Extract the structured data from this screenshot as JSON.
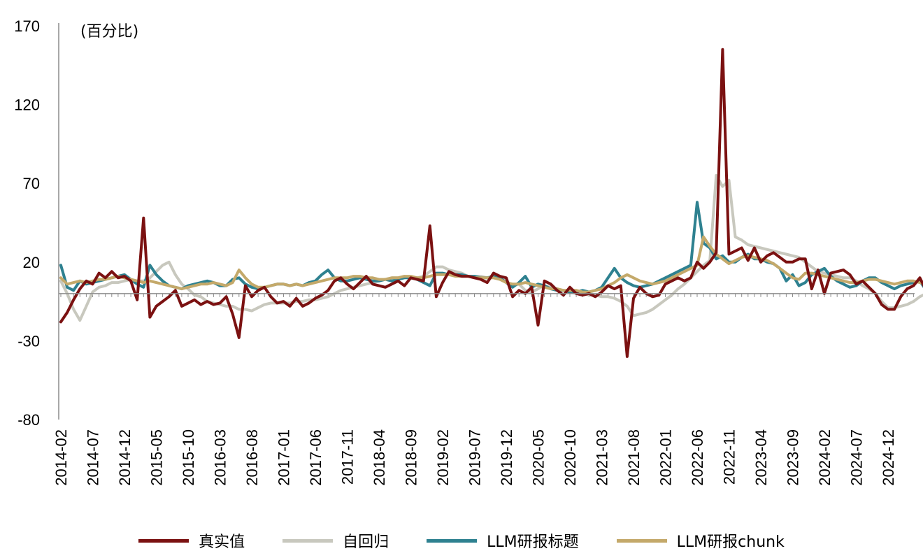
{
  "chart_data": {
    "type": "line",
    "unit_label": "(百分比)",
    "ylim": [
      -80,
      170
    ],
    "yticks": [
      -80,
      -30,
      20,
      70,
      120,
      170
    ],
    "xtick_labels": [
      "2014-02",
      "2014-07",
      "2014-12",
      "2015-05",
      "2015-10",
      "2016-03",
      "2016-08",
      "2017-01",
      "2017-06",
      "2017-11",
      "2018-04",
      "2018-09",
      "2019-02",
      "2019-07",
      "2019-12",
      "2020-05",
      "2020-10",
      "2021-03",
      "2021-08",
      "2022-01",
      "2022-06",
      "2022-11",
      "2023-04",
      "2023-09",
      "2024-02",
      "2024-07",
      "2024-12"
    ],
    "x_start": "2014-02",
    "grid": false,
    "legend_position": "bottom",
    "series": [
      {
        "name": "真实值",
        "color": "#7B1111",
        "values": [
          -18,
          -12,
          -4,
          3,
          8,
          6,
          13,
          10,
          14,
          10,
          11,
          8,
          -4,
          48,
          -15,
          -8,
          -5,
          -2,
          2,
          -8,
          -6,
          -4,
          -7,
          -5,
          -7,
          -6,
          -2,
          -13,
          -28,
          5,
          -2,
          2,
          4,
          -2,
          -6,
          -5,
          -8,
          -3,
          -8,
          -6,
          -3,
          -1,
          2,
          8,
          10,
          6,
          3,
          7,
          11,
          6,
          5,
          4,
          6,
          8,
          5,
          10,
          9,
          8,
          43,
          -2,
          7,
          14,
          12,
          11,
          11,
          10,
          9,
          7,
          13,
          11,
          10,
          -2,
          2,
          0,
          4,
          -20,
          8,
          6,
          2,
          -1,
          4,
          0,
          -1,
          0,
          -2,
          1,
          5,
          3,
          5,
          -40,
          -3,
          4,
          0,
          -2,
          -1,
          6,
          8,
          10,
          8,
          10,
          20,
          16,
          20,
          26,
          155,
          25,
          27,
          29,
          21,
          29,
          20,
          24,
          26,
          23,
          20,
          20,
          22,
          22,
          3,
          15,
          0,
          13,
          14,
          15,
          12,
          6,
          8,
          4,
          0,
          -7,
          -10,
          -10,
          -2,
          3,
          5,
          10,
          2,
          -7,
          -11,
          -13,
          -8,
          -2,
          3,
          6,
          -2,
          -5,
          5,
          6,
          -3,
          2,
          -8,
          3,
          -5,
          8,
          6,
          7,
          8,
          10,
          5,
          12,
          6,
          9,
          8,
          -3,
          11,
          8
        ]
      },
      {
        "name": "自回归",
        "color": "#C8C8BE",
        "values": [
          8,
          0,
          -10,
          -17,
          -8,
          1,
          4,
          5,
          7,
          7,
          8,
          9,
          8,
          8,
          10,
          14,
          18,
          20,
          12,
          6,
          3,
          -1,
          -2,
          -5,
          -6,
          -7,
          -8,
          -8,
          -10,
          -10,
          -11,
          -9,
          -7,
          -6,
          -6,
          -6,
          -6,
          -5,
          -5,
          -4,
          -4,
          -3,
          -2,
          0,
          2,
          3,
          4,
          5,
          6,
          7,
          8,
          9,
          10,
          10,
          11,
          10,
          10,
          11,
          14,
          17,
          17,
          15,
          14,
          13,
          11,
          11,
          11,
          10,
          10,
          9,
          8,
          5,
          6,
          2,
          1,
          3,
          5,
          4,
          3,
          2,
          1,
          0,
          0,
          -1,
          -1,
          -2,
          -2,
          -3,
          -5,
          -8,
          -14,
          -13,
          -12,
          -10,
          -7,
          -4,
          -1,
          3,
          6,
          10,
          14,
          18,
          21,
          75,
          68,
          72,
          36,
          34,
          31,
          30,
          29,
          28,
          27,
          26,
          25,
          24,
          23,
          20,
          17,
          14,
          13,
          12,
          11,
          10,
          10,
          8,
          5,
          3,
          0,
          -5,
          -9,
          -9,
          -8,
          -7,
          -5,
          -2,
          0,
          -2,
          -5,
          -7,
          -10,
          -13,
          -13,
          -12,
          -10,
          -8,
          -6,
          -4,
          -2,
          0,
          1,
          2,
          3,
          4,
          5,
          5,
          6,
          6,
          7,
          7,
          7,
          5,
          5,
          6,
          6
        ]
      },
      {
        "name": "LLM研报标题",
        "color": "#2E8190",
        "values": [
          18,
          4,
          2,
          8,
          6,
          7,
          8,
          9,
          10,
          11,
          12,
          9,
          6,
          4,
          18,
          12,
          8,
          5,
          4,
          3,
          5,
          6,
          7,
          8,
          7,
          5,
          5,
          9,
          10,
          6,
          4,
          3,
          4,
          5,
          6,
          6,
          5,
          6,
          5,
          7,
          8,
          12,
          15,
          10,
          8,
          8,
          9,
          10,
          9,
          8,
          8,
          9,
          8,
          9,
          10,
          10,
          9,
          7,
          5,
          13,
          13,
          12,
          12,
          12,
          11,
          11,
          10,
          10,
          11,
          10,
          7,
          4,
          7,
          11,
          4,
          6,
          5,
          3,
          2,
          2,
          1,
          1,
          2,
          1,
          2,
          4,
          10,
          16,
          10,
          7,
          5,
          4,
          5,
          6,
          8,
          10,
          12,
          14,
          16,
          18,
          58,
          32,
          29,
          22,
          24,
          20,
          20,
          23,
          25,
          22,
          22,
          20,
          19,
          16,
          8,
          12,
          5,
          7,
          12,
          14,
          16,
          11,
          8,
          6,
          4,
          5,
          8,
          10,
          10,
          7,
          5,
          3,
          5,
          6,
          7,
          8,
          2,
          2,
          3,
          3,
          4,
          5,
          4,
          6,
          6,
          4,
          6,
          5,
          7,
          7,
          6,
          8,
          8,
          9,
          6,
          7,
          7,
          6,
          6,
          7,
          6,
          6
        ]
      },
      {
        "name": "LLM研报chunk",
        "color": "#C4A96A",
        "values": [
          10,
          6,
          7,
          8,
          7,
          8,
          9,
          9,
          10,
          11,
          10,
          9,
          8,
          7,
          8,
          7,
          6,
          5,
          4,
          3,
          4,
          5,
          6,
          6,
          7,
          6,
          5,
          7,
          15,
          10,
          6,
          4,
          4,
          5,
          6,
          6,
          5,
          6,
          5,
          6,
          7,
          8,
          9,
          10,
          10,
          10,
          11,
          11,
          10,
          10,
          9,
          9,
          10,
          10,
          11,
          11,
          10,
          10,
          11,
          12,
          12,
          12,
          11,
          11,
          11,
          10,
          10,
          10,
          10,
          9,
          7,
          6,
          6,
          7,
          6,
          5,
          4,
          3,
          3,
          2,
          2,
          2,
          1,
          1,
          2,
          3,
          5,
          7,
          10,
          12,
          10,
          8,
          7,
          6,
          7,
          8,
          10,
          12,
          14,
          16,
          18,
          36,
          30,
          25,
          22,
          19,
          21,
          23,
          24,
          23,
          22,
          21,
          19,
          16,
          13,
          10,
          9,
          13,
          13,
          12,
          11,
          10,
          9,
          8,
          7,
          7,
          8,
          9,
          9,
          8,
          7,
          6,
          7,
          8,
          8,
          7,
          6,
          5,
          5,
          4,
          4,
          4,
          4,
          4,
          4,
          4,
          5,
          5,
          6,
          6,
          6,
          7,
          7,
          7,
          7,
          7,
          6,
          6,
          6,
          6,
          6,
          6
        ]
      }
    ]
  }
}
